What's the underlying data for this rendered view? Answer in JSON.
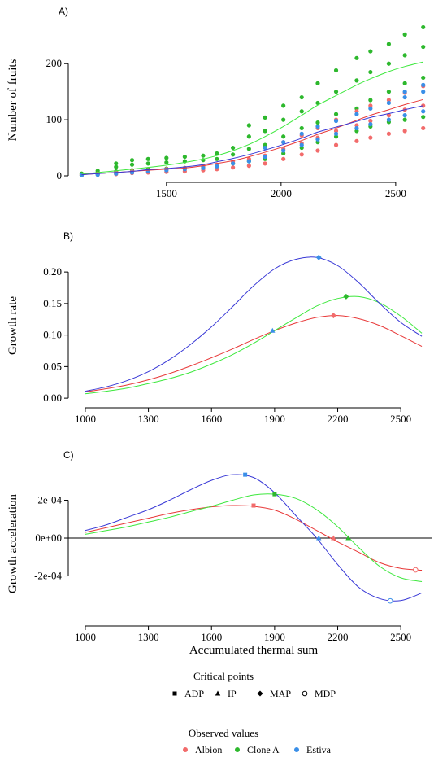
{
  "colors": {
    "Albion": "#f26b6b",
    "Clone A": "#2db82d",
    "Estiva": "#3a8fe8",
    "curve_Albion": "#e83838",
    "curve_CloneA": "#3ee83e",
    "curve_Estiva": "#3838d6",
    "axis": "#000000"
  },
  "chart_data": [
    {
      "type": "scatter",
      "panel_label": "A)",
      "title": "",
      "xlabel": "",
      "ylabel": "Number of fruits",
      "xlim": [
        1100,
        2660
      ],
      "ylim": [
        0,
        270
      ],
      "xticks": [
        1500,
        2000,
        2500
      ],
      "yticks": [
        0,
        100,
        200
      ],
      "x_sample": [
        1130,
        1200,
        1280,
        1350,
        1420,
        1500,
        1580,
        1660,
        1720,
        1790,
        1860,
        1930,
        2010,
        2090,
        2160,
        2240,
        2330,
        2390,
        2470,
        2540,
        2620
      ],
      "series": [
        {
          "name": "Clone A",
          "fit": [
            3,
            6,
            9,
            12,
            15,
            19,
            24,
            30,
            36,
            45,
            56,
            70,
            88,
            108,
            126,
            143,
            162,
            173,
            186,
            195,
            203
          ],
          "observed": [
            [
              1130,
              1,
              3,
              4
            ],
            [
              1200,
              3,
              6,
              9
            ],
            [
              1280,
              8,
              16,
              22
            ],
            [
              1350,
              10,
              20,
              28
            ],
            [
              1420,
              12,
              22,
              30
            ],
            [
              1500,
              13,
              24,
              32
            ],
            [
              1580,
              14,
              26,
              34
            ],
            [
              1660,
              16,
              28,
              36
            ],
            [
              1720,
              18,
              30,
              40
            ],
            [
              1790,
              22,
              38,
              50
            ],
            [
              1860,
              26,
              48,
              70,
              90
            ],
            [
              1930,
              30,
              55,
              80,
              104
            ],
            [
              2010,
              40,
              70,
              100,
              125
            ],
            [
              2090,
              50,
              85,
              115,
              140
            ],
            [
              2160,
              60,
              95,
              130,
              165
            ],
            [
              2240,
              70,
              110,
              150,
              188
            ],
            [
              2330,
              80,
              120,
              170,
              210
            ],
            [
              2390,
              88,
              135,
              185,
              222
            ],
            [
              2470,
              96,
              150,
              200,
              235
            ],
            [
              2540,
              100,
              165,
              215,
              252
            ],
            [
              2620,
              105,
              175,
              230,
              265
            ]
          ]
        },
        {
          "name": "Albion",
          "fit": [
            2,
            4,
            6,
            8,
            10,
            12,
            14,
            18,
            22,
            27,
            34,
            42,
            52,
            63,
            74,
            85,
            99,
            108,
            118,
            127,
            136
          ],
          "observed": [
            [
              1130,
              1,
              2
            ],
            [
              1200,
              2,
              4
            ],
            [
              1280,
              3,
              6
            ],
            [
              1350,
              5,
              8
            ],
            [
              1420,
              6,
              10
            ],
            [
              1500,
              7,
              12
            ],
            [
              1580,
              8,
              14
            ],
            [
              1660,
              10,
              17
            ],
            [
              1720,
              12,
              20
            ],
            [
              1790,
              15,
              25
            ],
            [
              1860,
              18,
              30
            ],
            [
              1930,
              22,
              36
            ],
            [
              2010,
              30,
              48,
              60
            ],
            [
              2090,
              38,
              58,
              72
            ],
            [
              2160,
              45,
              68,
              85
            ],
            [
              2240,
              55,
              80,
              100
            ],
            [
              2330,
              62,
              90,
              115
            ],
            [
              2390,
              68,
              98,
              125
            ],
            [
              2470,
              75,
              108,
              135
            ],
            [
              2540,
              80,
              118,
              148
            ],
            [
              2620,
              85,
              125,
              160
            ]
          ]
        },
        {
          "name": "Estiva",
          "fit": [
            2,
            4,
            6,
            8,
            11,
            13,
            16,
            20,
            25,
            31,
            38,
            46,
            56,
            67,
            78,
            87,
            97,
            104,
            111,
            118,
            125
          ],
          "observed": [
            [
              1130,
              1
            ],
            [
              1200,
              2
            ],
            [
              1280,
              4
            ],
            [
              1350,
              6
            ],
            [
              1420,
              8
            ],
            [
              1500,
              10
            ],
            [
              1580,
              12
            ],
            [
              1660,
              14
            ],
            [
              1720,
              17
            ],
            [
              1790,
              22
            ],
            [
              1860,
              26
            ],
            [
              1930,
              34,
              50
            ],
            [
              2010,
              45,
              60
            ],
            [
              2090,
              55,
              75
            ],
            [
              2160,
              65,
              88
            ],
            [
              2240,
              75,
              98
            ],
            [
              2330,
              85,
              110
            ],
            [
              2390,
              92,
              120
            ],
            [
              2470,
              100,
              130
            ],
            [
              2540,
              108,
              140,
              150
            ],
            [
              2620,
              115,
              150,
              162
            ]
          ]
        }
      ]
    },
    {
      "type": "line",
      "panel_label": "B)",
      "title": "",
      "xlabel": "",
      "ylabel": "Growth rate",
      "xlim": [
        950,
        2650
      ],
      "ylim": [
        -0.005,
        0.235
      ],
      "xticks": [
        1000,
        1300,
        1600,
        1900,
        2200,
        2500
      ],
      "yticks": [
        0.0,
        0.05,
        0.1,
        0.15,
        0.2
      ],
      "ytick_labels": [
        "0.00",
        "0.05",
        "0.10",
        "0.15",
        "0.20"
      ],
      "x_sample": [
        1000,
        1100,
        1200,
        1300,
        1400,
        1500,
        1600,
        1700,
        1800,
        1900,
        2000,
        2100,
        2200,
        2300,
        2400,
        2500,
        2600
      ],
      "series": [
        {
          "name": "Albion",
          "values": [
            0.01,
            0.015,
            0.021,
            0.029,
            0.039,
            0.051,
            0.064,
            0.078,
            0.093,
            0.107,
            0.119,
            0.128,
            0.131,
            0.126,
            0.115,
            0.099,
            0.082
          ],
          "markers": [
            {
              "x": 2180,
              "y": 0.131,
              "type": "MAP"
            }
          ]
        },
        {
          "name": "Clone A",
          "values": [
            0.007,
            0.011,
            0.016,
            0.023,
            0.031,
            0.041,
            0.054,
            0.069,
            0.087,
            0.107,
            0.127,
            0.146,
            0.158,
            0.161,
            0.151,
            0.13,
            0.103
          ],
          "markers": [
            {
              "x": 2240,
              "y": 0.161,
              "type": "MAP"
            }
          ]
        },
        {
          "name": "Estiva",
          "values": [
            0.011,
            0.018,
            0.028,
            0.042,
            0.061,
            0.085,
            0.113,
            0.145,
            0.178,
            0.205,
            0.22,
            0.223,
            0.21,
            0.183,
            0.15,
            0.12,
            0.098
          ],
          "markers": [
            {
              "x": 1890,
              "y": 0.107,
              "type": "IP"
            },
            {
              "x": 2110,
              "y": 0.223,
              "type": "MAP"
            }
          ]
        }
      ]
    },
    {
      "type": "line",
      "panel_label": "C)",
      "title": "",
      "xlabel": "Accumulated thermal sum",
      "ylabel": "Growth acceleration",
      "xlim": [
        950,
        2650
      ],
      "ylim": [
        -0.00043,
        0.00037
      ],
      "xticks": [
        1000,
        1300,
        1600,
        1900,
        2200,
        2500
      ],
      "yticks": [
        -0.0002,
        0.0,
        0.0002
      ],
      "ytick_labels": [
        "-2e-04",
        "0e+00",
        "2e-04"
      ],
      "zero_line": true,
      "x_sample": [
        1000,
        1100,
        1200,
        1300,
        1400,
        1500,
        1600,
        1700,
        1800,
        1900,
        2000,
        2100,
        2200,
        2300,
        2400,
        2500,
        2600
      ],
      "series": [
        {
          "name": "Albion",
          "values": [
            3e-05,
            5.5e-05,
            8e-05,
            0.000105,
            0.00013,
            0.00015,
            0.000165,
            0.000172,
            0.000168,
            0.000148,
            0.0001,
            4e-05,
            -2e-05,
            -7.5e-05,
            -0.00013,
            -0.00016,
            -0.00017
          ],
          "markers": [
            {
              "x": 1800,
              "y": 0.000172,
              "type": "ADP"
            },
            {
              "x": 2180,
              "y": 0.0,
              "type": "IP"
            },
            {
              "x": 2570,
              "y": -0.000168,
              "type": "MDP"
            }
          ]
        },
        {
          "name": "Clone A",
          "values": [
            2e-05,
            4e-05,
            6e-05,
            8.5e-05,
            0.00011,
            0.00014,
            0.000168,
            0.0002,
            0.000228,
            0.000232,
            0.00021,
            0.00015,
            6e-05,
            -5e-05,
            -0.00015,
            -0.00021,
            -0.00023
          ],
          "markers": [
            {
              "x": 1900,
              "y": 0.000232,
              "type": "ADP"
            },
            {
              "x": 2250,
              "y": 0.0,
              "type": "IP"
            }
          ]
        },
        {
          "name": "Estiva",
          "values": [
            4e-05,
            7e-05,
            0.00011,
            0.00015,
            0.0002,
            0.000255,
            0.000305,
            0.000335,
            0.00032,
            0.00024,
            0.00012,
            0.0,
            -0.00014,
            -0.00026,
            -0.00032,
            -0.00033,
            -0.00029
          ],
          "markers": [
            {
              "x": 1760,
              "y": 0.000335,
              "type": "ADP"
            },
            {
              "x": 2110,
              "y": 0.0,
              "type": "IP"
            },
            {
              "x": 2450,
              "y": -0.000332,
              "type": "MDP"
            }
          ]
        }
      ]
    }
  ],
  "legend_critical": {
    "title": "Critical points",
    "items": [
      {
        "label": "ADP",
        "shape": "square"
      },
      {
        "label": "IP",
        "shape": "triangle"
      },
      {
        "label": "MAP",
        "shape": "diamond"
      },
      {
        "label": "MDP",
        "shape": "circle-open"
      }
    ]
  },
  "legend_observed": {
    "title": "Observed values",
    "items": [
      {
        "label": "Albion"
      },
      {
        "label": "Clone A"
      },
      {
        "label": "Estiva"
      }
    ]
  }
}
